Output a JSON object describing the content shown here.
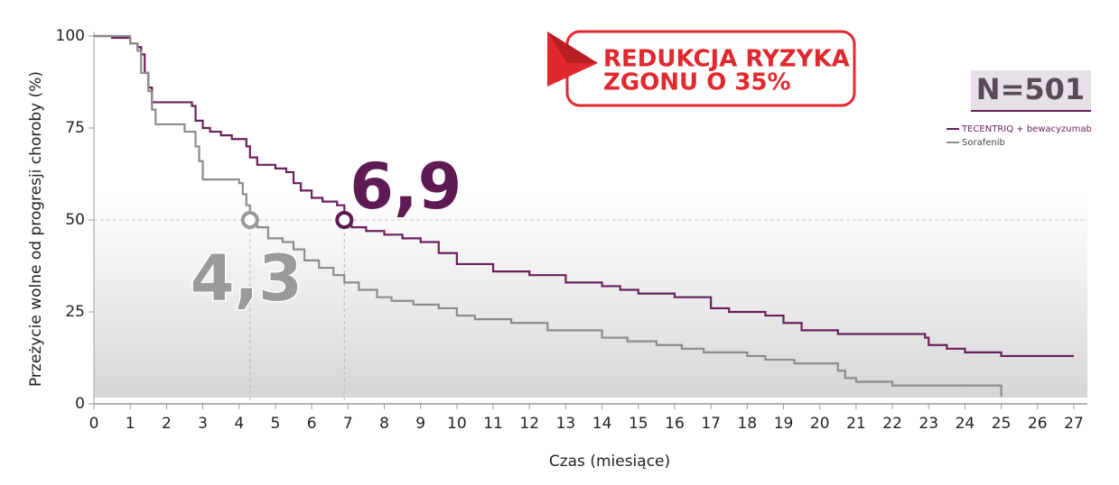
{
  "chart_data": {
    "type": "step",
    "x_label": "Czas (miesiące)",
    "y_label": "Przeżycie wolne od progresji choroby (%)",
    "xlim": [
      0,
      27
    ],
    "ylim": [
      0,
      100
    ],
    "xticks": [
      0,
      1,
      2,
      3,
      4,
      5,
      6,
      7,
      8,
      9,
      10,
      11,
      12,
      13,
      14,
      15,
      16,
      17,
      18,
      19,
      20,
      21,
      22,
      23,
      24,
      25,
      26,
      27
    ],
    "yticks": [
      0,
      25,
      50,
      75,
      100
    ],
    "series": [
      {
        "name": "TECENTRIQ + bewacyzumab",
        "color": "#6b1f5c",
        "x": [
          0,
          0.5,
          1,
          1.2,
          1.3,
          1.4,
          1.5,
          1.6,
          2.7,
          2.8,
          3,
          3.2,
          3.5,
          3.8,
          4.2,
          4.3,
          4.5,
          5,
          5.3,
          5.5,
          5.7,
          6,
          6.3,
          6.7,
          6.9,
          7.1,
          7.5,
          8,
          8.5,
          9,
          9.5,
          10,
          11,
          12,
          13,
          14,
          14.5,
          15,
          16,
          17,
          17.5,
          18.5,
          19,
          19.5,
          20.5,
          22.9,
          23,
          23.5,
          24,
          25,
          27
        ],
        "values": [
          100,
          99.5,
          98,
          97,
          95,
          90,
          86,
          82,
          81,
          77,
          75,
          74,
          73,
          72,
          70,
          67,
          65,
          64,
          63,
          60,
          58,
          56,
          55,
          54,
          51,
          48,
          47,
          46,
          45,
          44,
          41,
          38,
          36,
          35,
          33,
          32,
          31,
          30,
          29,
          26,
          25,
          24,
          22,
          20,
          19,
          18,
          16,
          15,
          14,
          13,
          13
        ]
      },
      {
        "name": "Sorafenib",
        "color": "#8c8c8c",
        "x": [
          0,
          1,
          1.2,
          1.3,
          1.5,
          1.6,
          1.7,
          2.5,
          2.8,
          2.9,
          3,
          4,
          4.1,
          4.2,
          4.3,
          4.5,
          4.8,
          5.2,
          5.5,
          5.8,
          6.2,
          6.6,
          6.9,
          7.3,
          7.8,
          8.2,
          8.8,
          9.5,
          10,
          10.5,
          11.5,
          12.5,
          14,
          14.7,
          15.5,
          16.2,
          16.8,
          18,
          18.5,
          19.3,
          20.5,
          20.7,
          21,
          22,
          25,
          25
        ],
        "values": [
          100,
          98,
          96,
          90,
          85,
          80,
          76,
          74,
          70,
          66,
          61,
          60,
          57,
          54,
          50,
          48,
          45,
          44,
          42,
          39,
          37,
          35,
          33,
          31,
          29,
          28,
          27,
          26,
          24,
          23,
          22,
          20,
          18,
          17,
          16,
          15,
          14,
          13,
          12,
          11,
          9,
          7,
          6,
          5,
          5,
          2
        ]
      }
    ],
    "medians": [
      {
        "x": 4.3,
        "y": 50,
        "label": "4,3",
        "color": "#9a9a9a"
      },
      {
        "x": 6.9,
        "y": 50,
        "label": "6,9",
        "color": "#5e1a52"
      }
    ],
    "callout": [
      "REDUKCJA RYZYKA",
      "ZGONU O 35%"
    ],
    "sample_size": "N=501"
  }
}
